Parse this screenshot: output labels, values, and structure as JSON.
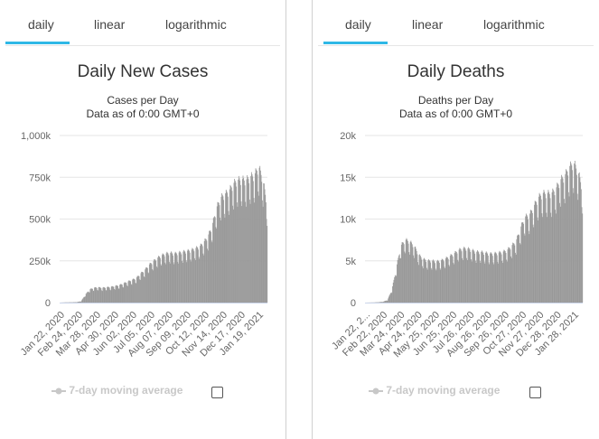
{
  "tabs": [
    "daily",
    "linear",
    "logarithmic"
  ],
  "legend_label": "7-day moving average",
  "colors": {
    "bar": "#999999",
    "accent": "#2fb8e6",
    "grid": "#e6e6e6",
    "axis": "#ccd6eb"
  },
  "chart_data": [
    {
      "type": "bar",
      "title": "Daily New Cases",
      "subtitle_lines": [
        "Cases per Day",
        "Data as of 0:00 GMT+0"
      ],
      "ylim": [
        0,
        1000000
      ],
      "y_ticks": [
        "0",
        "250k",
        "500k",
        "750k",
        "1,000k"
      ],
      "x_ticks": [
        "Jan 22, 2020",
        "Feb 24, 2020",
        "Mar 28, 2020",
        "Apr 30, 2020",
        "Jun 02, 2020",
        "Jul 05, 2020",
        "Aug 07, 2020",
        "Sep 09, 2020",
        "Oct 12, 2020",
        "Nov 14, 2020",
        "Dec 17, 2020",
        "Jan 19, 2021"
      ],
      "x_range": [
        "2020-01-22",
        "2021-01-25"
      ],
      "series": [
        {
          "values_anchor_weekly": [
            0,
            1000,
            1500,
            2000,
            3000,
            8000,
            45000,
            75000,
            85000,
            88000,
            85000,
            88000,
            90000,
            95000,
            100000,
            110000,
            120000,
            130000,
            140000,
            165000,
            185000,
            215000,
            235000,
            255000,
            270000,
            280000,
            285000,
            280000,
            285000,
            290000,
            295000,
            300000,
            310000,
            320000,
            345000,
            380000,
            440000,
            540000,
            600000,
            620000,
            640000,
            680000,
            700000,
            705000,
            700000,
            720000,
            730000,
            780000,
            700000,
            560000
          ]
        }
      ]
    },
    {
      "type": "bar",
      "title": "Daily Deaths",
      "subtitle_lines": [
        "Deaths per Day",
        "Data as of 0:00 GMT+0"
      ],
      "ylim": [
        0,
        20000
      ],
      "y_ticks": [
        "0",
        "5k",
        "10k",
        "15k",
        "20k"
      ],
      "x_ticks": [
        "Jan 22, 2...",
        "Feb 22, 2020",
        "Mar 24, 2020",
        "Apr 24, 2020",
        "May 25, 2020",
        "Jun 25, 2020",
        "Jul 26, 2020",
        "Aug 26, 2020",
        "Sep 26, 2020",
        "Oct 27, 2020",
        "Nov 27, 2020",
        "Dec 28, 2020",
        "Jan 28, 2021"
      ],
      "x_range": [
        "2020-01-22",
        "2021-01-25"
      ],
      "series": [
        {
          "values_anchor_weekly": [
            0,
            10,
            20,
            50,
            100,
            300,
            1500,
            4000,
            6500,
            7200,
            7000,
            6500,
            5500,
            5000,
            4800,
            4800,
            4700,
            4800,
            5000,
            5300,
            5600,
            6000,
            6200,
            6200,
            6000,
            5800,
            5800,
            5700,
            5600,
            5600,
            5700,
            5800,
            6000,
            6500,
            7000,
            8500,
            9800,
            10000,
            11000,
            12000,
            12500,
            12500,
            12500,
            13000,
            14000,
            14500,
            15500,
            16000,
            15000,
            13000
          ]
        }
      ]
    }
  ]
}
